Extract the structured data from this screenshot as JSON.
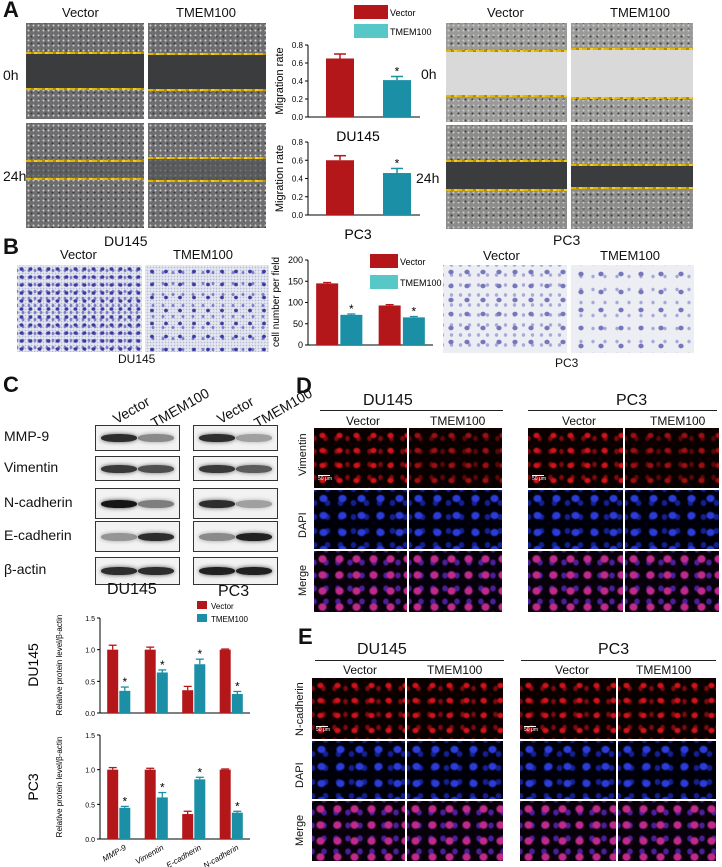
{
  "panels": {
    "A": "A",
    "B": "B",
    "C": "C",
    "D": "D",
    "E": "E"
  },
  "groups": {
    "vector": "Vector",
    "tmem": "TMEM100"
  },
  "cells": {
    "du145": "DU145",
    "pc3": "PC3"
  },
  "timepoints": {
    "t0": "0h",
    "t24": "24h"
  },
  "if_rows": {
    "vimentin": "Vimentin",
    "ncadherin": "N-cadherin",
    "dapi": "DAPI",
    "merge": "Merge"
  },
  "scale_text": "50 μm",
  "blot_rows": [
    "MMP-9",
    "Vimentin",
    "N-cadherin",
    "E-cadherin",
    "β-actin"
  ],
  "colors": {
    "vector": "#b3171a",
    "tmem": "#1b8fa6",
    "tmem_legend": "#57c7c7",
    "wound_edge": "#e0b600"
  },
  "chart_data": [
    {
      "type": "bar",
      "ylabel": "Migration rate",
      "xlabel": "DU145",
      "ylim": [
        0,
        0.8
      ],
      "yticks": [
        "0.0",
        "0.2",
        "0.4",
        "0.6",
        "0.8"
      ],
      "categories": [
        "Vector",
        "TMEM100"
      ],
      "values": [
        0.65,
        0.41
      ],
      "errors": [
        0.05,
        0.04
      ],
      "sig": [
        "",
        "*"
      ],
      "legend": [
        "Vector",
        "TMEM100"
      ]
    },
    {
      "type": "bar",
      "ylabel": "Migration rate",
      "xlabel": "PC3",
      "ylim": [
        0,
        0.8
      ],
      "yticks": [
        "0.0",
        "0.2",
        "0.4",
        "0.6",
        "0.8"
      ],
      "categories": [
        "Vector",
        "TMEM100"
      ],
      "values": [
        0.6,
        0.46
      ],
      "errors": [
        0.05,
        0.05
      ],
      "sig": [
        "",
        "*"
      ]
    },
    {
      "type": "bar",
      "ylabel": "cell number per field",
      "ylim": [
        0,
        200
      ],
      "yticks": [
        "0",
        "50",
        "100",
        "150",
        "200"
      ],
      "categories": [
        "DU145",
        "PC3"
      ],
      "series": [
        {
          "name": "Vector",
          "values": [
            145,
            93
          ],
          "errors": [
            2,
            2
          ],
          "sig": [
            "",
            ""
          ]
        },
        {
          "name": "TMEM100",
          "values": [
            71,
            65
          ],
          "errors": [
            2,
            2
          ],
          "sig": [
            "*",
            "*"
          ]
        }
      ],
      "legend": [
        "Vector",
        "TMEM100"
      ]
    },
    {
      "type": "bar",
      "title": "DU145",
      "ylabel": "Relative protein level/β-actin",
      "ylim": [
        0,
        1.5
      ],
      "yticks": [
        "0.0",
        "0.5",
        "1.0",
        "1.5"
      ],
      "categories": [
        "MMP-9",
        "Vimentin",
        "E-cadherin",
        "N-cadherin"
      ],
      "series": [
        {
          "name": "Vector",
          "values": [
            1.0,
            1.0,
            0.36,
            1.0
          ],
          "errors": [
            0.07,
            0.04,
            0.06,
            0.01
          ],
          "sig": [
            "",
            "",
            "",
            ""
          ]
        },
        {
          "name": "TMEM100",
          "values": [
            0.35,
            0.64,
            0.77,
            0.3
          ],
          "errors": [
            0.06,
            0.04,
            0.08,
            0.04
          ],
          "sig": [
            "*",
            "*",
            "*",
            "*"
          ]
        }
      ],
      "legend": [
        "Vector",
        "TMEM100"
      ]
    },
    {
      "type": "bar",
      "title": "PC3",
      "ylabel": "Relative protein level/β-actin",
      "ylim": [
        0,
        1.5
      ],
      "yticks": [
        "0.0",
        "0.5",
        "1.0",
        "1.5"
      ],
      "categories": [
        "MMP-9",
        "Vimentin",
        "E-cadherin",
        "N-cadherin"
      ],
      "series": [
        {
          "name": "Vector",
          "values": [
            1.0,
            1.0,
            0.36,
            1.0
          ],
          "errors": [
            0.03,
            0.02,
            0.04,
            0.01
          ],
          "sig": [
            "",
            "",
            "",
            ""
          ]
        },
        {
          "name": "TMEM100",
          "values": [
            0.45,
            0.6,
            0.86,
            0.38
          ],
          "errors": [
            0.02,
            0.07,
            0.03,
            0.02
          ],
          "sig": [
            "*",
            "*",
            "*",
            "*"
          ]
        }
      ]
    }
  ]
}
